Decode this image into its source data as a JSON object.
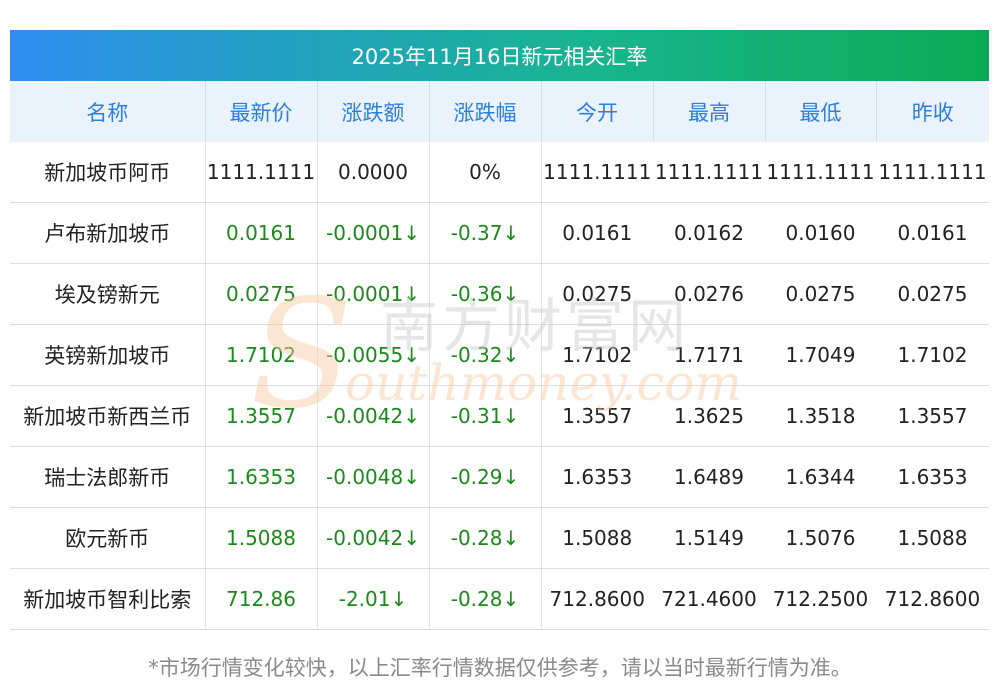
{
  "title": "2025年11月16日新元相关汇率",
  "columns": [
    "名称",
    "最新价",
    "涨跌额",
    "涨跌幅",
    "今开",
    "最高",
    "最低",
    "昨收"
  ],
  "rows": [
    {
      "name": "新加坡币阿币",
      "latest": "1111.1111",
      "change": "0.0000",
      "pct": "0%",
      "open": "1111.1111",
      "high": "1111.1111",
      "low": "1111.1111",
      "prev": "1111.1111",
      "colored": false
    },
    {
      "name": "卢布新加坡币",
      "latest": "0.0161",
      "change": "-0.0001↓",
      "pct": "-0.37↓",
      "open": "0.0161",
      "high": "0.0162",
      "low": "0.0160",
      "prev": "0.0161",
      "colored": true
    },
    {
      "name": "埃及镑新元",
      "latest": "0.0275",
      "change": "-0.0001↓",
      "pct": "-0.36↓",
      "open": "0.0275",
      "high": "0.0276",
      "low": "0.0275",
      "prev": "0.0275",
      "colored": true
    },
    {
      "name": "英镑新加坡币",
      "latest": "1.7102",
      "change": "-0.0055↓",
      "pct": "-0.32↓",
      "open": "1.7102",
      "high": "1.7171",
      "low": "1.7049",
      "prev": "1.7102",
      "colored": true
    },
    {
      "name": "新加坡币新西兰币",
      "latest": "1.3557",
      "change": "-0.0042↓",
      "pct": "-0.31↓",
      "open": "1.3557",
      "high": "1.3625",
      "low": "1.3518",
      "prev": "1.3557",
      "colored": true
    },
    {
      "name": "瑞士法郎新币",
      "latest": "1.6353",
      "change": "-0.0048↓",
      "pct": "-0.29↓",
      "open": "1.6353",
      "high": "1.6489",
      "low": "1.6344",
      "prev": "1.6353",
      "colored": true
    },
    {
      "name": "欧元新币",
      "latest": "1.5088",
      "change": "-0.0042↓",
      "pct": "-0.28↓",
      "open": "1.5088",
      "high": "1.5149",
      "low": "1.5076",
      "prev": "1.5088",
      "colored": true
    },
    {
      "name": "新加坡币智利比索",
      "latest": "712.86",
      "change": "-2.01↓",
      "pct": "-0.28↓",
      "open": "712.8600",
      "high": "721.4600",
      "low": "712.2500",
      "prev": "712.8600",
      "colored": true
    }
  ],
  "watermark": {
    "cn": "南方财富网",
    "en": "outhmoney.com",
    "initial": "S"
  },
  "footer": "*市场行情变化较快，以上汇率行情数据仅供参考，请以当时最新行情为准。",
  "colors": {
    "header_text": "#2c7ee0",
    "down_green": "#1b8a1b",
    "title_gradient_start": "#2f8ef0",
    "title_gradient_end": "#0bab55"
  }
}
